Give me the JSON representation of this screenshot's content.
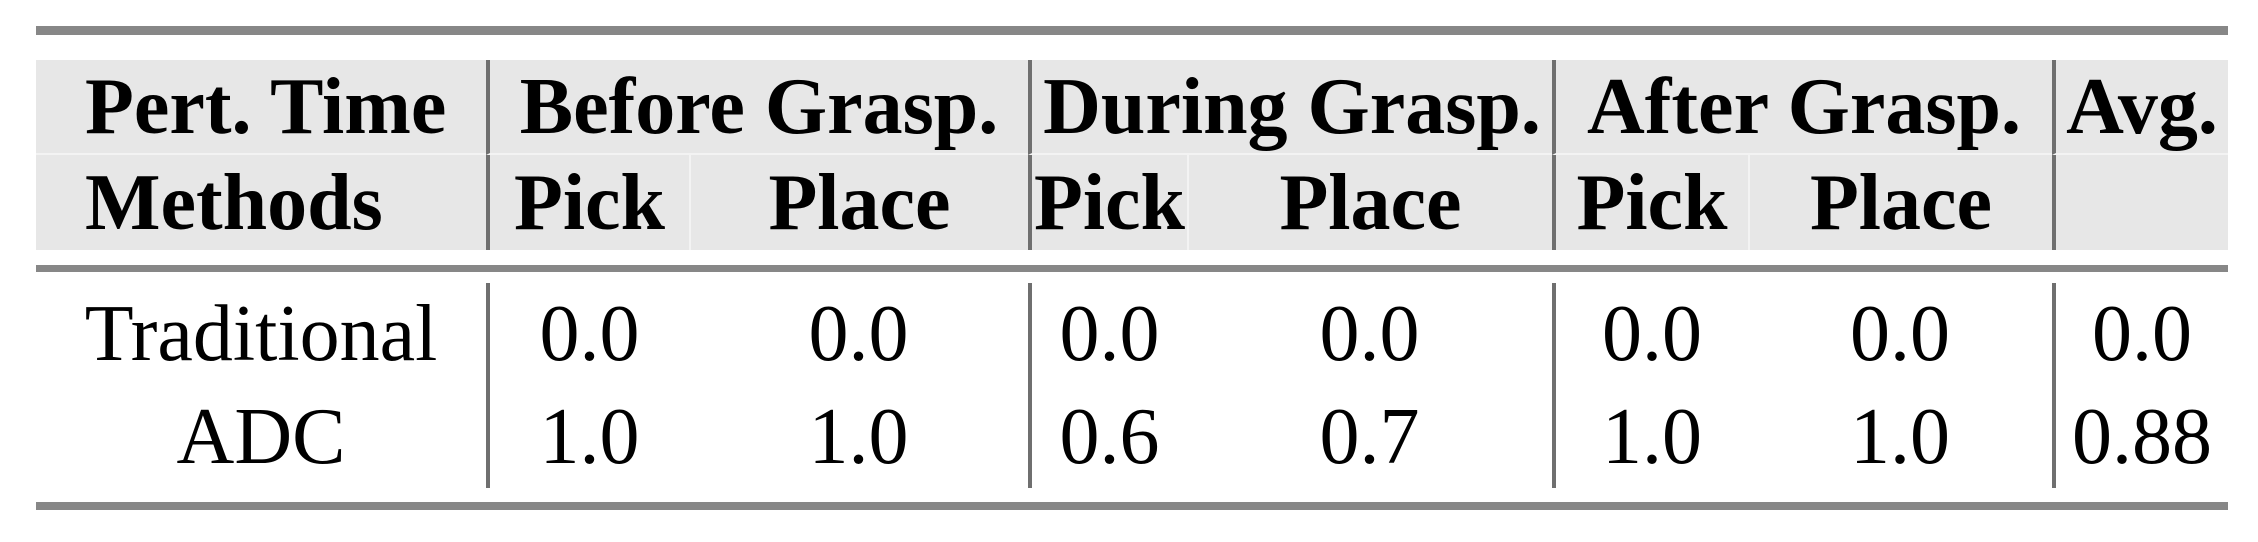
{
  "table": {
    "header": {
      "row1_col1": "Pert. Time",
      "row2_col1": "Methods",
      "groups": [
        {
          "label": "Before Grasp.",
          "sub_columns": [
            "Pick",
            "Place"
          ]
        },
        {
          "label": "During Grasp.",
          "sub_columns": [
            "Pick",
            "Place"
          ]
        },
        {
          "label": "After Grasp.",
          "sub_columns": [
            "Pick",
            "Place"
          ]
        }
      ],
      "avg": "Avg."
    },
    "rows": [
      {
        "method": "Traditional",
        "values": [
          "0.0",
          "0.0",
          "0.0",
          "0.0",
          "0.0",
          "0.0",
          "0.0"
        ]
      },
      {
        "method": "ADC",
        "values": [
          "1.0",
          "1.0",
          "0.6",
          "0.7",
          "1.0",
          "1.0",
          "0.88"
        ]
      }
    ]
  },
  "colors": {
    "header_background": "#e7e7e7",
    "rule": "#878787",
    "separator": "#6f6f6f",
    "text": "#000000"
  }
}
